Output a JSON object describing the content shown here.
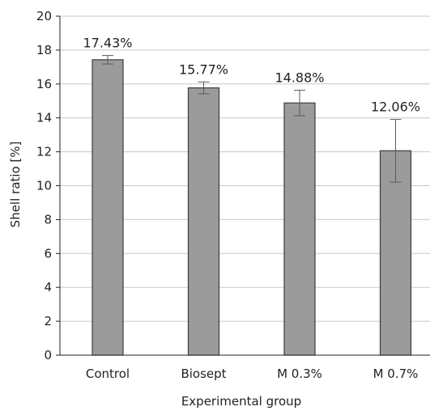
{
  "chart_data": {
    "type": "bar",
    "categories": [
      "Control",
      "Biosept",
      "M 0.3%",
      "M 0.7%"
    ],
    "values": [
      17.43,
      15.77,
      14.88,
      12.06
    ],
    "error": [
      0.25,
      0.35,
      0.75,
      1.85
    ],
    "data_labels": [
      "17.43%",
      "15.77%",
      "14.88%",
      "12.06%"
    ],
    "xlabel": "Experimental group",
    "ylabel": "Shell ratio [%]",
    "ylim": [
      0,
      20
    ],
    "yticks": [
      0,
      2,
      4,
      6,
      8,
      10,
      12,
      14,
      16,
      18,
      20
    ],
    "grid": "horizontal",
    "legend": "none",
    "colors": {
      "bar_fill": "#9b9b9b",
      "bar_stroke": "#3d3d3d",
      "grid": "#c8c8c8",
      "axis": "#231f20",
      "error_bar": "#5a5a5a"
    }
  }
}
